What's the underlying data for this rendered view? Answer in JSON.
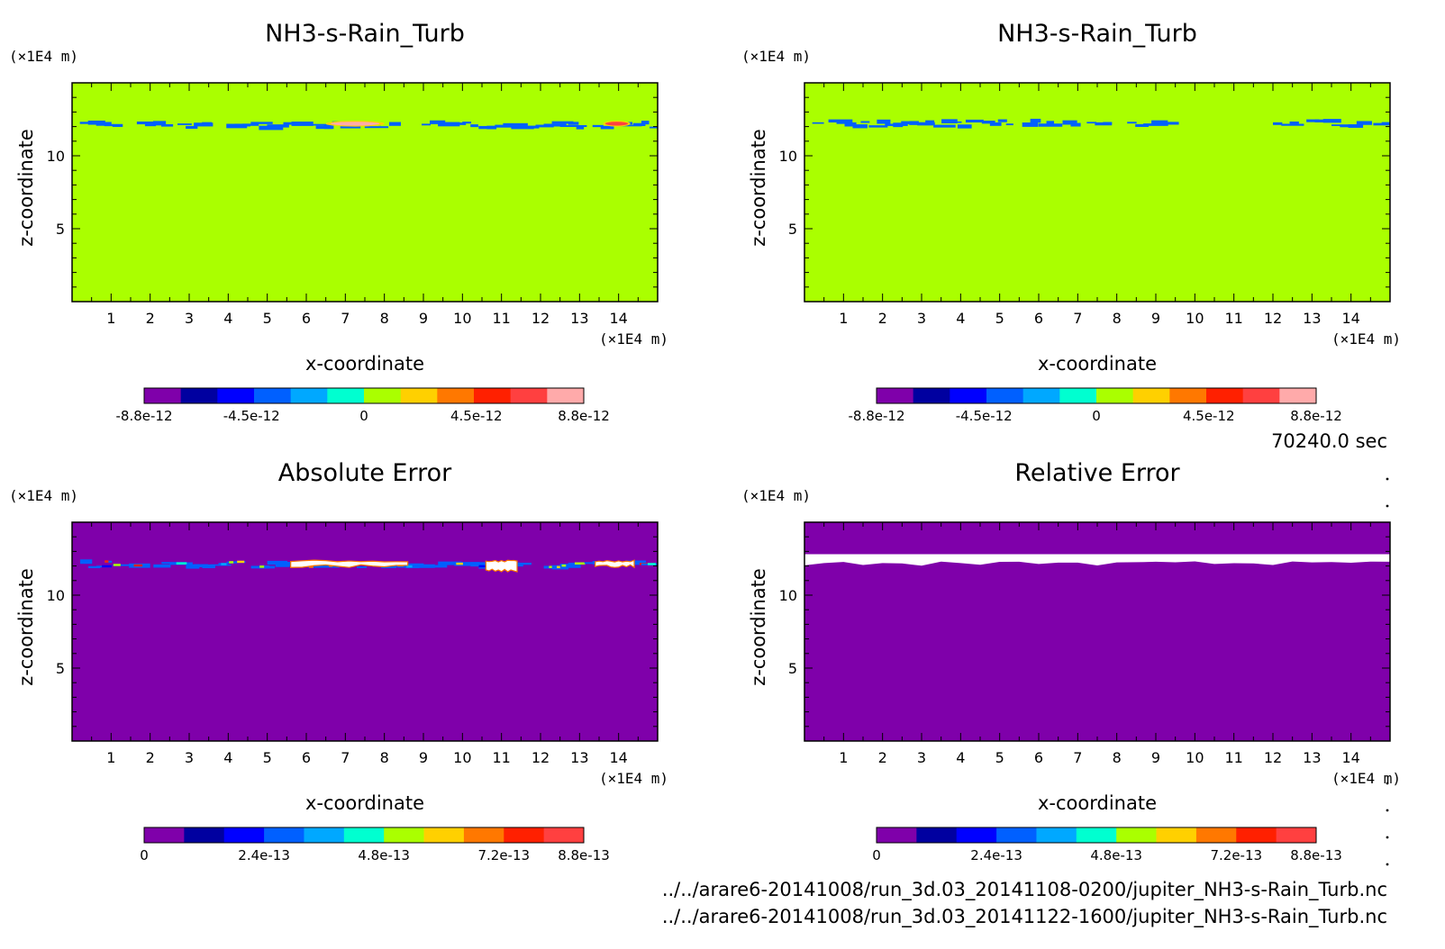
{
  "time_label": "70240.0 sec",
  "files": [
    "../../arare6-20141008/run_3d.03_20141108-0200/jupiter_NH3-s-Rain_Turb.nc",
    "../../arare6-20141008/run_3d.03_20141122-1600/jupiter_NH3-s-Rain_Turb.nc"
  ],
  "colors": {
    "neutral": "#aaff00",
    "background_error": "#7f00aa",
    "white": "#ffffff"
  },
  "chart_data": [
    {
      "type": "heatmap",
      "title": "NH3-s-Rain_Turb",
      "xlabel": "x-coordinate",
      "ylabel": "z-coordinate",
      "x_unit": "(×1E4 m)",
      "y_unit": "(×1E4 m)",
      "xlim": [
        0,
        15
      ],
      "ylim": [
        0,
        15
      ],
      "x_ticks": [
        1,
        2,
        3,
        4,
        5,
        6,
        7,
        8,
        9,
        10,
        11,
        12,
        13,
        14
      ],
      "y_ticks": [
        5,
        10
      ],
      "colorbar": {
        "labels": [
          "-8.8e-12",
          "-4.5e-12",
          "0",
          "4.5e-12",
          "8.8e-12"
        ],
        "label_values": [
          -8.8e-12,
          -4.5e-12,
          0,
          4.5e-12,
          8.8e-12
        ],
        "range": [
          -8.8e-12,
          8.8e-12
        ],
        "colors": [
          "#7f00aa",
          "#0000a0",
          "#0000ff",
          "#0060ff",
          "#00a8ff",
          "#00ffd0",
          "#aaff00",
          "#ffd000",
          "#ff7800",
          "#ff2000",
          "#ff4040",
          "#ffaaaa"
        ]
      },
      "background_value": 0,
      "features": [
        {
          "kind": "streak",
          "x": [
            0.2,
            15
          ],
          "z": [
            11.7,
            12.5
          ],
          "value": -3e-12
        },
        {
          "kind": "blob",
          "x": [
            6.5,
            8.0
          ],
          "z": [
            12.0,
            12.4
          ],
          "value": 7.5e-12
        },
        {
          "kind": "blob",
          "x": [
            13.6,
            14.3
          ],
          "z": [
            12.0,
            12.4
          ],
          "value": 6.5e-12
        }
      ]
    },
    {
      "type": "heatmap",
      "title": "NH3-s-Rain_Turb",
      "xlabel": "x-coordinate",
      "ylabel": "z-coordinate",
      "x_unit": "(×1E4 m)",
      "y_unit": "(×1E4 m)",
      "xlim": [
        0,
        15
      ],
      "ylim": [
        0,
        15
      ],
      "x_ticks": [
        1,
        2,
        3,
        4,
        5,
        6,
        7,
        8,
        9,
        10,
        11,
        12,
        13,
        14
      ],
      "y_ticks": [
        5,
        10
      ],
      "colorbar": {
        "labels": [
          "-8.8e-12",
          "-4.5e-12",
          "0",
          "4.5e-12",
          "8.8e-12"
        ],
        "label_values": [
          -8.8e-12,
          -4.5e-12,
          0,
          4.5e-12,
          8.8e-12
        ],
        "range": [
          -8.8e-12,
          8.8e-12
        ],
        "colors": [
          "#7f00aa",
          "#0000a0",
          "#0000ff",
          "#0060ff",
          "#00a8ff",
          "#00ffd0",
          "#aaff00",
          "#ffd000",
          "#ff7800",
          "#ff2000",
          "#ff4040",
          "#ffaaaa"
        ]
      },
      "background_value": 0,
      "features": [
        {
          "kind": "streak",
          "x": [
            0.2,
            9.3
          ],
          "z": [
            11.8,
            12.6
          ],
          "value": -3e-12
        },
        {
          "kind": "streak",
          "x": [
            12.0,
            15
          ],
          "z": [
            11.8,
            12.6
          ],
          "value": -3e-12
        }
      ]
    },
    {
      "type": "heatmap",
      "title": "Absolute Error",
      "xlabel": "x-coordinate",
      "ylabel": "z-coordinate",
      "x_unit": "(×1E4 m)",
      "y_unit": "(×1E4 m)",
      "xlim": [
        0,
        15
      ],
      "ylim": [
        0,
        15
      ],
      "x_ticks": [
        1,
        2,
        3,
        4,
        5,
        6,
        7,
        8,
        9,
        10,
        11,
        12,
        13,
        14
      ],
      "y_ticks": [
        5,
        10
      ],
      "colorbar": {
        "labels": [
          "0",
          "2.4e-13",
          "4.8e-13",
          "7.2e-13",
          "8.8e-13"
        ],
        "label_values": [
          0,
          2.4e-13,
          4.8e-13,
          7.2e-13,
          8.8e-13
        ],
        "range": [
          0,
          8.8e-13
        ],
        "colors": [
          "#7f00aa",
          "#0000a0",
          "#0000ff",
          "#0060ff",
          "#00a8ff",
          "#00ffd0",
          "#aaff00",
          "#ffd000",
          "#ff7800",
          "#ff2000",
          "#ff4040"
        ]
      },
      "background_value": 0,
      "features": [
        {
          "kind": "streak",
          "x": [
            0,
            15
          ],
          "z": [
            11.7,
            12.5
          ],
          "value": 3e-13
        },
        {
          "kind": "saturated",
          "x": [
            5.6,
            8.6
          ],
          "z": [
            11.9,
            12.4
          ]
        },
        {
          "kind": "saturated",
          "x": [
            10.6,
            11.4
          ],
          "z": [
            11.6,
            12.4
          ]
        },
        {
          "kind": "saturated",
          "x": [
            13.4,
            14.4
          ],
          "z": [
            11.9,
            12.4
          ]
        }
      ]
    },
    {
      "type": "heatmap",
      "title": "Relative Error",
      "xlabel": "x-coordinate",
      "ylabel": "z-coordinate",
      "x_unit": "(×1E4 m)",
      "y_unit": "(×1E4 m)",
      "xlim": [
        0,
        15
      ],
      "ylim": [
        0,
        15
      ],
      "x_ticks": [
        1,
        2,
        3,
        4,
        5,
        6,
        7,
        8,
        9,
        10,
        11,
        12,
        13,
        14
      ],
      "y_ticks": [
        5,
        10
      ],
      "colorbar": {
        "labels": [
          "0",
          "2.4e-13",
          "4.8e-13",
          "7.2e-13",
          "8.8e-13"
        ],
        "label_values": [
          0,
          2.4e-13,
          4.8e-13,
          7.2e-13,
          8.8e-13
        ],
        "range": [
          0,
          8.8e-13
        ],
        "colors": [
          "#7f00aa",
          "#0000a0",
          "#0000ff",
          "#0060ff",
          "#00a8ff",
          "#00ffd0",
          "#aaff00",
          "#ffd000",
          "#ff7800",
          "#ff2000",
          "#ff4040"
        ]
      },
      "background_value": 0,
      "features": [
        {
          "kind": "band",
          "x": [
            0,
            15
          ],
          "z": [
            11.7,
            12.5
          ]
        }
      ]
    }
  ]
}
